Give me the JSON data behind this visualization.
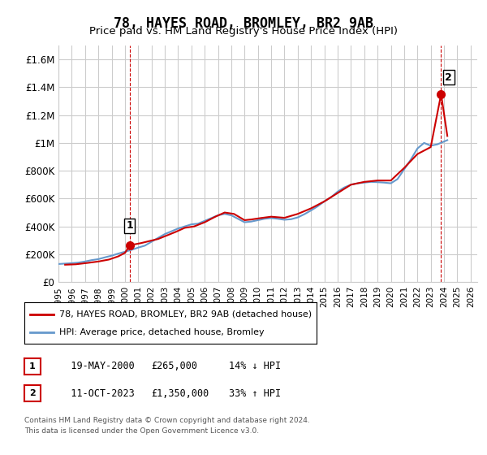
{
  "title": "78, HAYES ROAD, BROMLEY, BR2 9AB",
  "subtitle": "Price paid vs. HM Land Registry's House Price Index (HPI)",
  "title_fontsize": 13,
  "subtitle_fontsize": 10,
  "ylabel_vals": [
    0,
    200000,
    400000,
    600000,
    800000,
    1000000,
    1200000,
    1400000,
    1600000
  ],
  "ylabel_labels": [
    "£0",
    "£200K",
    "£400K",
    "£600K",
    "£800K",
    "£1M",
    "£1.2M",
    "£1.4M",
    "£1.6M"
  ],
  "ylim": [
    0,
    1700000
  ],
  "xlim_start": 1995.0,
  "xlim_end": 2026.5,
  "xtick_years": [
    1995,
    1996,
    1997,
    1998,
    1999,
    2000,
    2001,
    2002,
    2003,
    2004,
    2005,
    2006,
    2007,
    2008,
    2009,
    2010,
    2011,
    2012,
    2013,
    2014,
    2015,
    2016,
    2017,
    2018,
    2019,
    2020,
    2021,
    2022,
    2023,
    2024,
    2025,
    2026
  ],
  "point1_x": 2000.38,
  "point1_y": 265000,
  "point1_label": "1",
  "point1_date": "19-MAY-2000",
  "point1_price": "£265,000",
  "point1_hpi": "14% ↓ HPI",
  "point2_x": 2023.78,
  "point2_y": 1350000,
  "point2_label": "2",
  "point2_date": "11-OCT-2023",
  "point2_price": "£1,350,000",
  "point2_hpi": "33% ↑ HPI",
  "line_price_color": "#cc0000",
  "line_hpi_color": "#6699cc",
  "marker_color": "#cc0000",
  "vline_color": "#cc0000",
  "grid_color": "#cccccc",
  "background_color": "#ffffff",
  "legend_label_price": "78, HAYES ROAD, BROMLEY, BR2 9AB (detached house)",
  "legend_label_hpi": "HPI: Average price, detached house, Bromley",
  "footer1": "Contains HM Land Registry data © Crown copyright and database right 2024.",
  "footer2": "This data is licensed under the Open Government Licence v3.0.",
  "table_rows": [
    {
      "num": "1",
      "date": "19-MAY-2000",
      "price": "£265,000",
      "hpi": "14% ↓ HPI"
    },
    {
      "num": "2",
      "date": "11-OCT-2023",
      "price": "£1,350,000",
      "hpi": "33% ↑ HPI"
    }
  ],
  "hpi_x": [
    1995.0,
    1995.5,
    1996.0,
    1996.5,
    1997.0,
    1997.5,
    1998.0,
    1998.5,
    1999.0,
    1999.5,
    2000.0,
    2000.5,
    2001.0,
    2001.5,
    2002.0,
    2002.5,
    2003.0,
    2003.5,
    2004.0,
    2004.5,
    2005.0,
    2005.5,
    2006.0,
    2006.5,
    2007.0,
    2007.5,
    2008.0,
    2008.5,
    2009.0,
    2009.5,
    2010.0,
    2010.5,
    2011.0,
    2011.5,
    2012.0,
    2012.5,
    2013.0,
    2013.5,
    2014.0,
    2014.5,
    2015.0,
    2015.5,
    2016.0,
    2016.5,
    2017.0,
    2017.5,
    2018.0,
    2018.5,
    2019.0,
    2019.5,
    2020.0,
    2020.5,
    2021.0,
    2021.5,
    2022.0,
    2022.5,
    2023.0,
    2023.5,
    2024.0,
    2024.25
  ],
  "hpi_y": [
    130000,
    133000,
    136000,
    140000,
    148000,
    158000,
    165000,
    178000,
    190000,
    205000,
    218000,
    232000,
    248000,
    262000,
    290000,
    318000,
    345000,
    365000,
    385000,
    400000,
    415000,
    420000,
    440000,
    460000,
    480000,
    490000,
    480000,
    455000,
    430000,
    435000,
    445000,
    455000,
    460000,
    455000,
    448000,
    452000,
    465000,
    488000,
    515000,
    545000,
    580000,
    610000,
    650000,
    680000,
    700000,
    710000,
    715000,
    720000,
    718000,
    715000,
    710000,
    740000,
    810000,
    880000,
    960000,
    1000000,
    980000,
    990000,
    1010000,
    1020000
  ],
  "price_x": [
    1995.5,
    1996.3,
    1997.2,
    1998.0,
    1998.8,
    1999.5,
    2000.0,
    2000.38,
    2001.2,
    2002.5,
    2003.8,
    2004.5,
    2005.2,
    2006.0,
    2006.8,
    2007.5,
    2008.2,
    2009.0,
    2009.5,
    2010.2,
    2011.0,
    2012.0,
    2013.0,
    2014.0,
    2015.0,
    2016.0,
    2017.0,
    2018.0,
    2019.0,
    2020.0,
    2021.0,
    2022.0,
    2023.0,
    2023.78,
    2024.25
  ],
  "price_y": [
    125000,
    128000,
    138000,
    148000,
    162000,
    185000,
    210000,
    265000,
    280000,
    310000,
    360000,
    390000,
    400000,
    430000,
    470000,
    500000,
    490000,
    445000,
    450000,
    460000,
    470000,
    462000,
    490000,
    530000,
    580000,
    640000,
    700000,
    720000,
    730000,
    730000,
    820000,
    920000,
    970000,
    1350000,
    1050000
  ]
}
